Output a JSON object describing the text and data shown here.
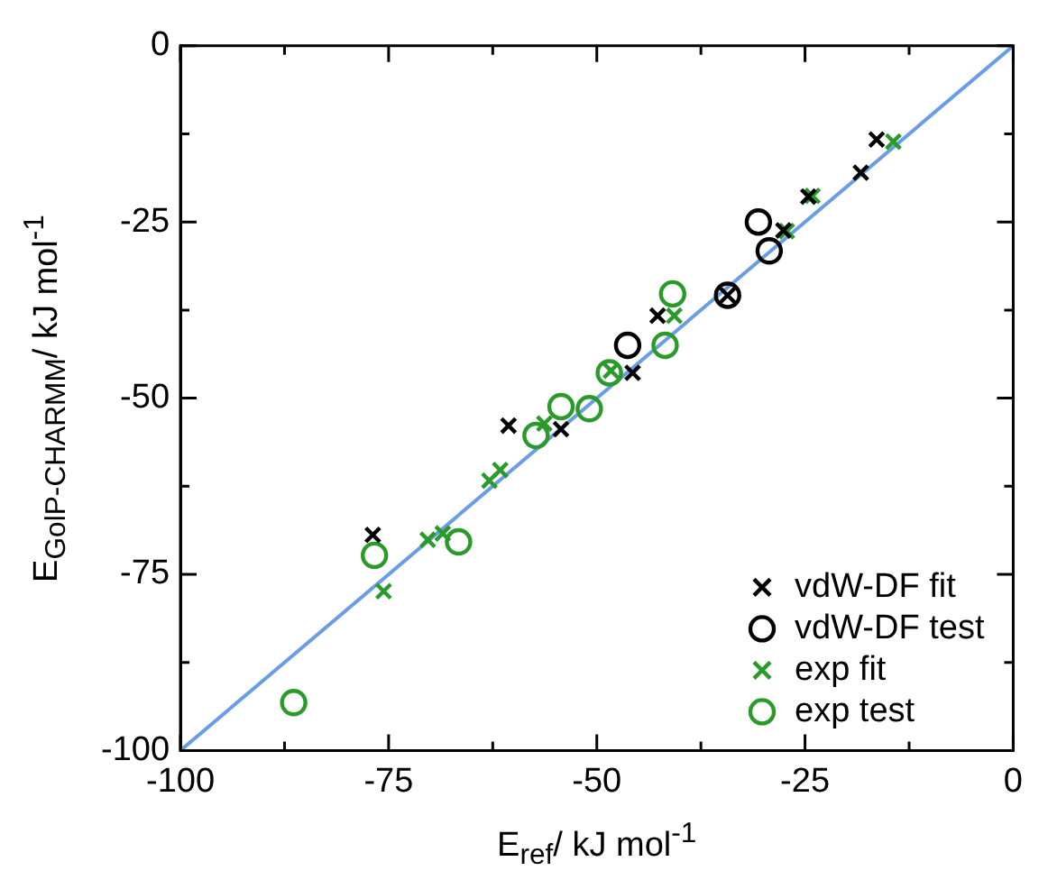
{
  "chart_data": {
    "type": "scatter",
    "xlabel": "E$_{ref}$/ kJ mol$^{-1}$",
    "ylabel": "E$_{GolP-CHARMM}$/ kJ mol$^{-1}$",
    "xlim": [
      -100,
      0
    ],
    "ylim": [
      -100,
      0
    ],
    "xticks": [
      -100,
      {
        "value": -87.5,
        "label": null
      },
      -75,
      {
        "value": -62.5,
        "label": null
      },
      -50,
      {
        "value": -37.5,
        "label": null
      },
      -25,
      {
        "value": -12.5,
        "label": null
      },
      0
    ],
    "yticks": [
      -100,
      {
        "value": -87.5,
        "label": null
      },
      -75,
      {
        "value": -62.5,
        "label": null
      },
      -50,
      {
        "value": -37.5,
        "label": null
      },
      -25,
      {
        "value": -12.5,
        "label": null
      },
      0
    ],
    "grid": false,
    "legend": "bottom right",
    "series": [
      {
        "name": "vdW-DF fit",
        "color": "#000000",
        "marker": "cross",
        "x": [
          -76.9,
          -60.6,
          -54.3,
          -45.7,
          -42.7,
          -27.6,
          -24.6,
          -18.3,
          -16.4,
          -34.3
        ],
        "values": [
          -69.4,
          -53.9,
          -54.4,
          -46.4,
          -38.3,
          -26.2,
          -21.4,
          -18.0,
          -13.3,
          -35.4
        ]
      },
      {
        "name": "vdW-DF test",
        "color": "#000000",
        "marker": "circle",
        "x": [
          -30.6,
          -29.3,
          -34.3,
          -46.3
        ],
        "values": [
          -25.0,
          -29.1,
          -35.4,
          -42.5
        ]
      },
      {
        "name": "exp fit",
        "color": "#2a9a2a",
        "marker": "cross",
        "x": [
          -14.4,
          -24.1,
          -27.2,
          -40.7,
          -48.3,
          -56.3,
          -61.6,
          -62.9,
          -68.5,
          -70.3,
          -75.6
        ],
        "values": [
          -13.6,
          -21.3,
          -26.3,
          -38.3,
          -46.1,
          -53.6,
          -60.2,
          -61.7,
          -69.2,
          -70.1,
          -77.4
        ]
      },
      {
        "name": "exp test",
        "color": "#2a9a2a",
        "marker": "circle",
        "x": [
          -40.9,
          -41.8,
          -48.5,
          -50.9,
          -54.3,
          -57.3,
          -66.6,
          -76.7,
          -86.4
        ],
        "values": [
          -35.2,
          -42.5,
          -46.4,
          -51.5,
          -51.2,
          -55.3,
          -70.4,
          -72.3,
          -93.2
        ]
      },
      {
        "type": "line",
        "color": "#6a9ce8",
        "marker": "none",
        "x": [
          -100,
          0
        ],
        "values": [
          -100,
          0
        ]
      }
    ]
  }
}
